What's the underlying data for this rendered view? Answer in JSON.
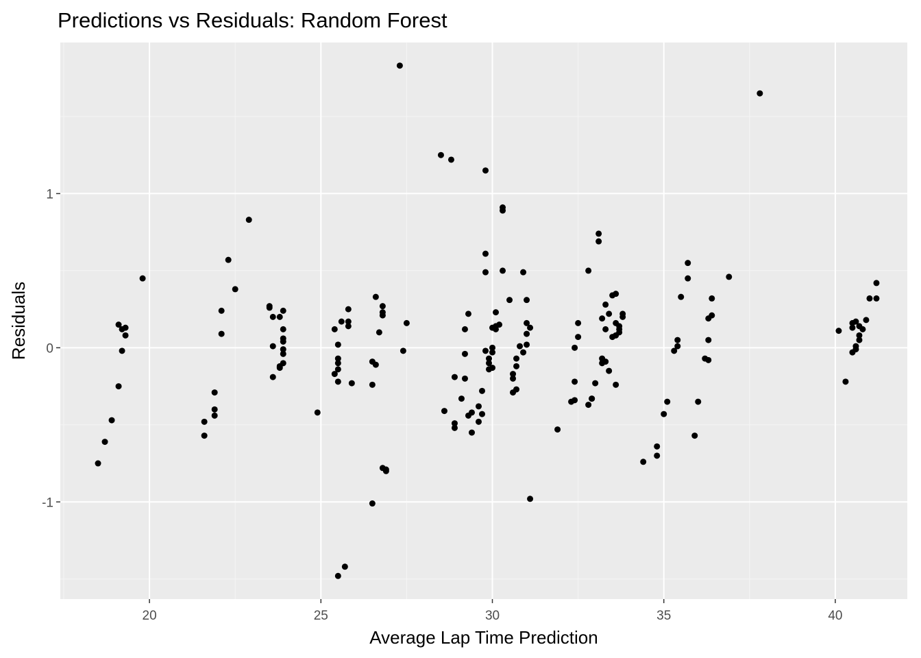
{
  "colors": {
    "panel": "#ebebeb",
    "grid_major": "#ffffff",
    "grid_minor": "#f5f5f5",
    "point": "#000000",
    "tick": "#333333",
    "tick_label": "#4d4d4d"
  },
  "chart_data": {
    "type": "scatter",
    "title": "Predictions vs Residuals: Random Forest",
    "xlabel": "Average Lap Time Prediction",
    "ylabel": "Residuals",
    "xlim": [
      17.4,
      42.1
    ],
    "ylim": [
      -1.63,
      1.98
    ],
    "x_ticks": [
      20,
      25,
      30,
      35,
      40
    ],
    "x_tick_labels": [
      "20",
      "25",
      "30",
      "35",
      "40"
    ],
    "y_ticks": [
      -1,
      0,
      1
    ],
    "y_tick_labels": [
      "-1",
      "0",
      "1"
    ],
    "grid": true,
    "legend": "none",
    "points": [
      [
        18.5,
        -0.75
      ],
      [
        18.7,
        -0.61
      ],
      [
        18.9,
        -0.47
      ],
      [
        19.1,
        -0.25
      ],
      [
        19.1,
        0.15
      ],
      [
        19.2,
        -0.02
      ],
      [
        19.2,
        0.12
      ],
      [
        19.3,
        0.08
      ],
      [
        19.3,
        0.13
      ],
      [
        19.8,
        0.45
      ],
      [
        21.6,
        -0.48
      ],
      [
        21.6,
        -0.57
      ],
      [
        21.9,
        -0.4
      ],
      [
        21.9,
        -0.44
      ],
      [
        21.9,
        -0.29
      ],
      [
        22.1,
        0.24
      ],
      [
        22.1,
        0.09
      ],
      [
        22.3,
        0.57
      ],
      [
        22.5,
        0.38
      ],
      [
        22.9,
        0.83
      ],
      [
        23.5,
        0.27
      ],
      [
        23.5,
        0.26
      ],
      [
        23.6,
        0.2
      ],
      [
        23.8,
        0.2
      ],
      [
        23.6,
        0.01
      ],
      [
        23.6,
        -0.19
      ],
      [
        23.8,
        -0.13
      ],
      [
        23.8,
        -0.12
      ],
      [
        23.9,
        -0.1
      ],
      [
        23.9,
        0.12
      ],
      [
        23.9,
        0.06
      ],
      [
        23.9,
        0.04
      ],
      [
        23.9,
        -0.01
      ],
      [
        23.9,
        -0.04
      ],
      [
        23.9,
        0.24
      ],
      [
        24.9,
        -0.42
      ],
      [
        25.4,
        0.12
      ],
      [
        25.4,
        -0.17
      ],
      [
        25.5,
        -0.14
      ],
      [
        25.5,
        0.02
      ],
      [
        25.5,
        -0.07
      ],
      [
        25.5,
        -0.1
      ],
      [
        25.5,
        -0.22
      ],
      [
        25.6,
        0.17
      ],
      [
        25.8,
        0.17
      ],
      [
        25.8,
        0.14
      ],
      [
        25.8,
        0.25
      ],
      [
        25.9,
        -0.23
      ],
      [
        25.5,
        -1.48
      ],
      [
        25.7,
        -1.42
      ],
      [
        26.5,
        -1.01
      ],
      [
        26.5,
        -0.24
      ],
      [
        26.5,
        -0.09
      ],
      [
        26.6,
        -0.11
      ],
      [
        26.6,
        0.33
      ],
      [
        26.7,
        0.1
      ],
      [
        26.8,
        0.27
      ],
      [
        26.8,
        0.23
      ],
      [
        26.8,
        0.21
      ],
      [
        26.8,
        -0.78
      ],
      [
        26.9,
        -0.8
      ],
      [
        26.9,
        -0.79
      ],
      [
        27.3,
        1.83
      ],
      [
        27.4,
        -0.02
      ],
      [
        27.5,
        0.16
      ],
      [
        28.5,
        1.25
      ],
      [
        28.6,
        -0.41
      ],
      [
        28.8,
        1.22
      ],
      [
        28.9,
        -0.49
      ],
      [
        28.9,
        -0.52
      ],
      [
        28.9,
        -0.19
      ],
      [
        29.1,
        -0.33
      ],
      [
        29.2,
        -0.2
      ],
      [
        29.2,
        -0.04
      ],
      [
        29.2,
        0.12
      ],
      [
        29.3,
        -0.44
      ],
      [
        29.3,
        0.22
      ],
      [
        29.4,
        -0.42
      ],
      [
        29.4,
        -0.55
      ],
      [
        29.6,
        -0.48
      ],
      [
        29.6,
        -0.38
      ],
      [
        29.7,
        -0.28
      ],
      [
        29.7,
        -0.43
      ],
      [
        29.8,
        1.15
      ],
      [
        29.8,
        0.61
      ],
      [
        29.8,
        0.49
      ],
      [
        29.8,
        -0.02
      ],
      [
        29.9,
        -0.14
      ],
      [
        29.9,
        -0.1
      ],
      [
        29.9,
        -0.07
      ],
      [
        30.0,
        -0.13
      ],
      [
        30.0,
        0.0
      ],
      [
        30.0,
        -0.03
      ],
      [
        30.0,
        0.13
      ],
      [
        30.1,
        0.23
      ],
      [
        30.1,
        0.12
      ],
      [
        30.1,
        0.14
      ],
      [
        30.2,
        0.15
      ],
      [
        30.3,
        0.91
      ],
      [
        30.3,
        0.89
      ],
      [
        30.3,
        0.5
      ],
      [
        30.5,
        0.31
      ],
      [
        30.6,
        -0.29
      ],
      [
        30.6,
        -0.2
      ],
      [
        30.6,
        -0.17
      ],
      [
        30.7,
        -0.12
      ],
      [
        30.7,
        -0.27
      ],
      [
        30.7,
        -0.07
      ],
      [
        30.8,
        0.01
      ],
      [
        30.9,
        -0.03
      ],
      [
        30.9,
        0.49
      ],
      [
        31.0,
        0.31
      ],
      [
        31.0,
        0.02
      ],
      [
        31.0,
        0.09
      ],
      [
        31.0,
        0.16
      ],
      [
        31.1,
        0.13
      ],
      [
        31.1,
        -0.98
      ],
      [
        31.9,
        -0.53
      ],
      [
        32.3,
        -0.35
      ],
      [
        32.4,
        -0.22
      ],
      [
        32.4,
        -0.34
      ],
      [
        32.4,
        0.0
      ],
      [
        32.5,
        0.07
      ],
      [
        32.5,
        0.16
      ],
      [
        32.8,
        0.5
      ],
      [
        32.8,
        -0.37
      ],
      [
        32.9,
        -0.33
      ],
      [
        32.9,
        -0.33
      ],
      [
        33.0,
        -0.23
      ],
      [
        33.1,
        0.74
      ],
      [
        33.1,
        0.69
      ],
      [
        33.2,
        -0.1
      ],
      [
        33.2,
        -0.07
      ],
      [
        33.2,
        0.19
      ],
      [
        33.3,
        -0.09
      ],
      [
        33.3,
        0.12
      ],
      [
        33.3,
        0.28
      ],
      [
        33.4,
        0.22
      ],
      [
        33.4,
        -0.15
      ],
      [
        33.5,
        0.34
      ],
      [
        33.5,
        0.07
      ],
      [
        33.6,
        0.08
      ],
      [
        33.6,
        0.35
      ],
      [
        33.6,
        0.16
      ],
      [
        33.6,
        -0.24
      ],
      [
        33.7,
        0.12
      ],
      [
        33.7,
        0.14
      ],
      [
        33.7,
        0.1
      ],
      [
        33.8,
        0.2
      ],
      [
        33.8,
        0.22
      ],
      [
        34.4,
        -0.74
      ],
      [
        34.8,
        -0.7
      ],
      [
        34.8,
        -0.64
      ],
      [
        35.0,
        -0.43
      ],
      [
        35.1,
        -0.35
      ],
      [
        35.3,
        -0.02
      ],
      [
        35.4,
        0.01
      ],
      [
        35.4,
        0.05
      ],
      [
        35.5,
        0.33
      ],
      [
        35.7,
        0.45
      ],
      [
        35.7,
        0.55
      ],
      [
        35.9,
        -0.57
      ],
      [
        36.0,
        -0.35
      ],
      [
        36.2,
        -0.07
      ],
      [
        36.3,
        -0.08
      ],
      [
        36.3,
        0.19
      ],
      [
        36.3,
        0.05
      ],
      [
        36.4,
        0.21
      ],
      [
        36.4,
        0.32
      ],
      [
        36.9,
        0.46
      ],
      [
        37.8,
        1.65
      ],
      [
        40.1,
        0.11
      ],
      [
        40.3,
        -0.22
      ],
      [
        40.5,
        0.13
      ],
      [
        40.5,
        0.16
      ],
      [
        40.5,
        -0.03
      ],
      [
        40.6,
        0.17
      ],
      [
        40.6,
        -0.01
      ],
      [
        40.6,
        0.01
      ],
      [
        40.7,
        0.14
      ],
      [
        40.7,
        0.08
      ],
      [
        40.7,
        0.05
      ],
      [
        40.8,
        0.12
      ],
      [
        40.9,
        0.18
      ],
      [
        41.0,
        0.32
      ],
      [
        41.2,
        0.32
      ],
      [
        41.2,
        0.42
      ]
    ]
  }
}
